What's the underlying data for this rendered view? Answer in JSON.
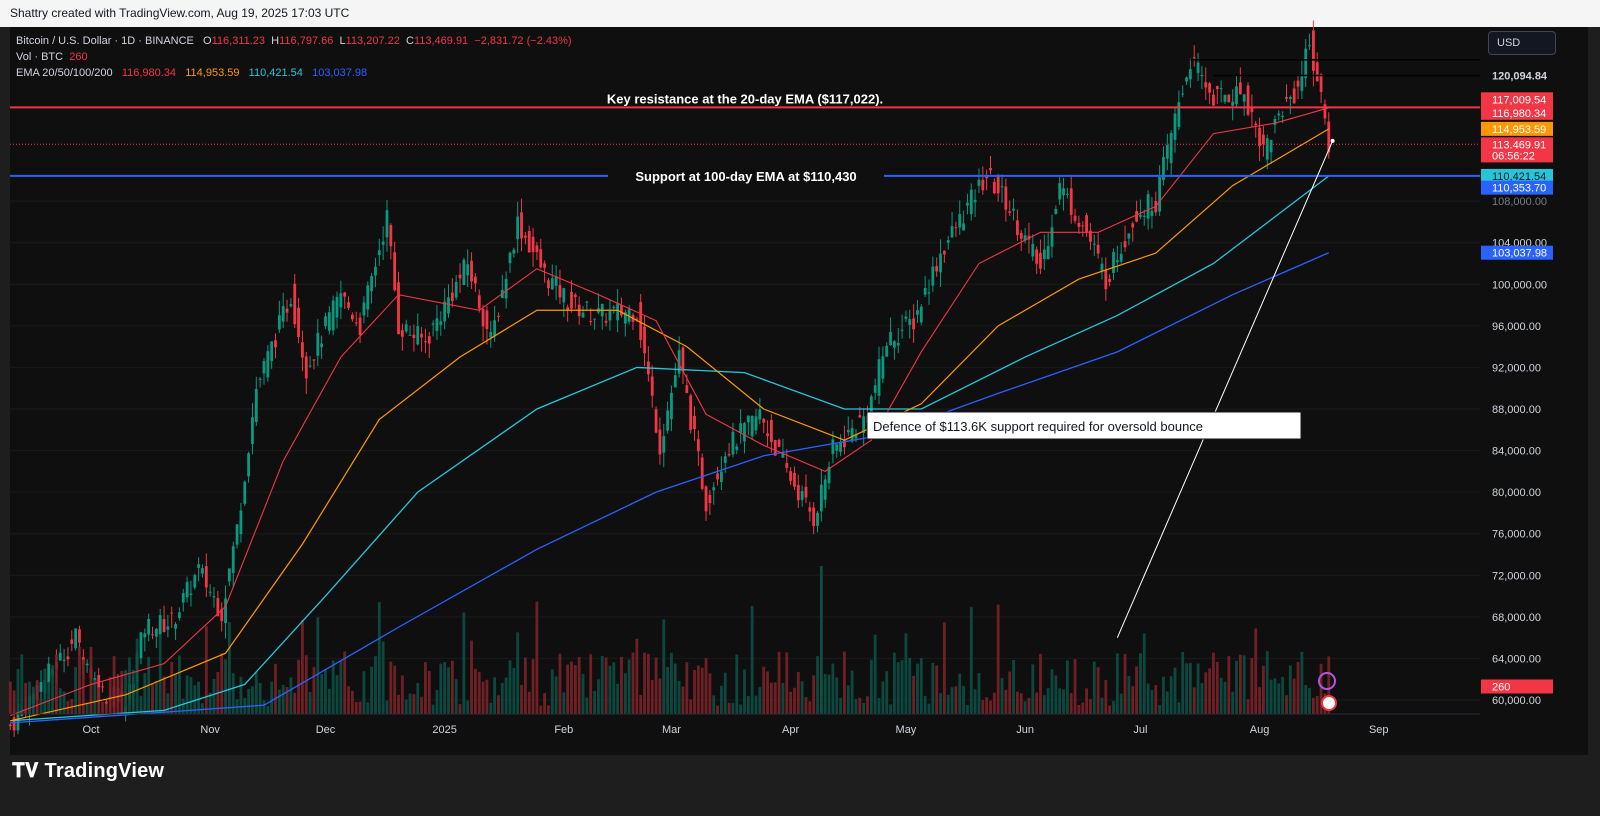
{
  "header": {
    "watermark": "Shattry created with TradingView.com, Aug 19, 2025 17:03 UTC"
  },
  "legend": {
    "symbol": "Bitcoin / U.S. Dollar · 1D · BINANCE",
    "o_label": "O",
    "o_value": "116,311.23",
    "h_label": "H",
    "h_value": "116,797.66",
    "l_label": "L",
    "l_value": "113,207.22",
    "c_label": "C",
    "c_value": "113,469.91",
    "change": "−2,831.72 (−2.43%)",
    "vol_label": "Vol · BTC",
    "vol_value": "260",
    "ema_label": "EMA 20/50/100/200",
    "ema20": "116,980.34",
    "ema50": "114,953.59",
    "ema100": "110,421.54",
    "ema200": "103,037.98"
  },
  "currency_button": "USD",
  "brand": "TradingView",
  "colors": {
    "up": "#089981",
    "down": "#f23645",
    "ema20": "#f23645",
    "ema50": "#ff9800",
    "ema100": "#26c6da",
    "ema200": "#2962ff",
    "background": "#0f0f0f"
  },
  "chart_data": {
    "type": "candlestick",
    "title": "Bitcoin / U.S. Dollar · 1D · BINANCE",
    "ylim": [
      58000,
      124000
    ],
    "y_ticks": [
      "60,000.00",
      "64,000.00",
      "68,000.00",
      "72,000.00",
      "76,000.00",
      "80,000.00",
      "84,000.00",
      "88,000.00",
      "92,000.00",
      "96,000.00",
      "100,000.00",
      "104,000.00",
      "108,000.00",
      "120,094.84"
    ],
    "y_tick_values": [
      60000,
      64000,
      68000,
      72000,
      76000,
      80000,
      84000,
      88000,
      92000,
      96000,
      100000,
      104000,
      108000,
      120094.84
    ],
    "x_ticks": [
      {
        "label": "Oct",
        "date": "2024-10-01"
      },
      {
        "label": "Nov",
        "date": "2024-11-01"
      },
      {
        "label": "Dec",
        "date": "2024-12-01"
      },
      {
        "label": "2025",
        "date": "2025-01-01"
      },
      {
        "label": "Feb",
        "date": "2025-02-01"
      },
      {
        "label": "Mar",
        "date": "2025-03-01"
      },
      {
        "label": "Apr",
        "date": "2025-04-01"
      },
      {
        "label": "May",
        "date": "2025-05-01"
      },
      {
        "label": "Jun",
        "date": "2025-06-01"
      },
      {
        "label": "Jul",
        "date": "2025-07-01"
      },
      {
        "label": "Aug",
        "date": "2025-08-01"
      },
      {
        "label": "Sep",
        "date": "2025-09-01"
      }
    ],
    "price_path": [
      [
        "2024-09-10",
        57500
      ],
      [
        "2024-09-20",
        62500
      ],
      [
        "2024-09-27",
        66000
      ],
      [
        "2024-10-03",
        61000
      ],
      [
        "2024-10-10",
        59500
      ],
      [
        "2024-10-15",
        67000
      ],
      [
        "2024-10-22",
        67500
      ],
      [
        "2024-10-29",
        72500
      ],
      [
        "2024-11-04",
        68500
      ],
      [
        "2024-11-08",
        76500
      ],
      [
        "2024-11-13",
        90000
      ],
      [
        "2024-11-22",
        99000
      ],
      [
        "2024-11-26",
        92000
      ],
      [
        "2024-12-05",
        99000
      ],
      [
        "2024-12-10",
        96000
      ],
      [
        "2024-12-17",
        106500
      ],
      [
        "2024-12-20",
        96000
      ],
      [
        "2024-12-27",
        94500
      ],
      [
        "2025-01-07",
        102000
      ],
      [
        "2025-01-13",
        94500
      ],
      [
        "2025-01-20",
        106000
      ],
      [
        "2025-01-27",
        101000
      ],
      [
        "2025-02-03",
        98000
      ],
      [
        "2025-02-10",
        97000
      ],
      [
        "2025-02-20",
        97500
      ],
      [
        "2025-02-26",
        84500
      ],
      [
        "2025-03-03",
        93000
      ],
      [
        "2025-03-10",
        79000
      ],
      [
        "2025-03-15",
        84000
      ],
      [
        "2025-03-24",
        87500
      ],
      [
        "2025-03-31",
        82000
      ],
      [
        "2025-04-07",
        77500
      ],
      [
        "2025-04-12",
        84000
      ],
      [
        "2025-04-21",
        87500
      ],
      [
        "2025-04-26",
        94500
      ],
      [
        "2025-05-03",
        96500
      ],
      [
        "2025-05-10",
        103000
      ],
      [
        "2025-05-22",
        110500
      ],
      [
        "2025-05-27",
        108000
      ],
      [
        "2025-06-05",
        101500
      ],
      [
        "2025-06-10",
        109500
      ],
      [
        "2025-06-17",
        105000
      ],
      [
        "2025-06-22",
        100500
      ],
      [
        "2025-06-30",
        107000
      ],
      [
        "2025-07-05",
        108000
      ],
      [
        "2025-07-11",
        117500
      ],
      [
        "2025-07-14",
        121500
      ],
      [
        "2025-07-20",
        118000
      ],
      [
        "2025-07-28",
        118500
      ],
      [
        "2025-08-02",
        113000
      ],
      [
        "2025-08-07",
        117000
      ],
      [
        "2025-08-11",
        119000
      ],
      [
        "2025-08-14",
        123500
      ],
      [
        "2025-08-17",
        117500
      ],
      [
        "2025-08-19",
        113469.91
      ]
    ],
    "ema20": [
      [
        "2024-09-10",
        58500
      ],
      [
        "2024-10-01",
        61500
      ],
      [
        "2024-10-20",
        63500
      ],
      [
        "2024-11-05",
        69000
      ],
      [
        "2024-11-20",
        83000
      ],
      [
        "2024-12-05",
        93000
      ],
      [
        "2024-12-20",
        99000
      ],
      [
        "2025-01-10",
        97500
      ],
      [
        "2025-01-25",
        101500
      ],
      [
        "2025-02-10",
        99000
      ],
      [
        "2025-02-25",
        96500
      ],
      [
        "2025-03-10",
        87500
      ],
      [
        "2025-03-25",
        84500
      ],
      [
        "2025-04-10",
        82000
      ],
      [
        "2025-04-22",
        85000
      ],
      [
        "2025-05-05",
        93500
      ],
      [
        "2025-05-20",
        102000
      ],
      [
        "2025-06-05",
        105000
      ],
      [
        "2025-06-20",
        105000
      ],
      [
        "2025-07-05",
        107500
      ],
      [
        "2025-07-20",
        114500
      ],
      [
        "2025-08-05",
        115500
      ],
      [
        "2025-08-19",
        116980.34
      ]
    ],
    "ema50": [
      [
        "2024-09-10",
        58000
      ],
      [
        "2024-10-10",
        60500
      ],
      [
        "2024-11-05",
        64500
      ],
      [
        "2024-11-25",
        75000
      ],
      [
        "2024-12-15",
        87000
      ],
      [
        "2025-01-05",
        93000
      ],
      [
        "2025-01-25",
        97500
      ],
      [
        "2025-02-15",
        97500
      ],
      [
        "2025-03-05",
        94000
      ],
      [
        "2025-03-25",
        88000
      ],
      [
        "2025-04-15",
        85000
      ],
      [
        "2025-05-05",
        88500
      ],
      [
        "2025-05-25",
        96000
      ],
      [
        "2025-06-15",
        100500
      ],
      [
        "2025-07-05",
        103000
      ],
      [
        "2025-07-25",
        109500
      ],
      [
        "2025-08-19",
        114953.59
      ]
    ],
    "ema100": [
      [
        "2024-09-10",
        58000
      ],
      [
        "2024-10-20",
        59000
      ],
      [
        "2024-11-10",
        61500
      ],
      [
        "2024-12-01",
        70000
      ],
      [
        "2024-12-25",
        80000
      ],
      [
        "2025-01-25",
        88000
      ],
      [
        "2025-02-20",
        92000
      ],
      [
        "2025-03-20",
        91500
      ],
      [
        "2025-04-15",
        88000
      ],
      [
        "2025-05-05",
        88000
      ],
      [
        "2025-06-01",
        93000
      ],
      [
        "2025-06-25",
        97000
      ],
      [
        "2025-07-20",
        102000
      ],
      [
        "2025-08-19",
        110421.54
      ]
    ],
    "ema200": [
      [
        "2024-09-10",
        57800
      ],
      [
        "2024-11-15",
        59500
      ],
      [
        "2024-12-20",
        67000
      ],
      [
        "2025-01-25",
        74500
      ],
      [
        "2025-02-25",
        80000
      ],
      [
        "2025-03-25",
        83500
      ],
      [
        "2025-04-25",
        85500
      ],
      [
        "2025-05-25",
        89500
      ],
      [
        "2025-06-25",
        93500
      ],
      [
        "2025-07-25",
        99000
      ],
      [
        "2025-08-19",
        103037.98
      ]
    ],
    "horizontal_lines": [
      {
        "label": "Key resistance at the 20-day EMA ($117,022).",
        "price": 117022,
        "color": "#f23645"
      },
      {
        "label": "Support at 100-day EMA at $110,430",
        "price": 110430,
        "color": "#2962ff"
      }
    ],
    "black_lines": [
      {
        "from": "2025-07-14",
        "to": "2025-09-05",
        "price": 121600
      },
      {
        "from": "2025-07-20",
        "to": "2025-09-05",
        "price": 120094.84
      }
    ],
    "trendline": {
      "from": [
        "2025-06-25",
        66000
      ],
      "to": [
        "2025-08-20",
        113800
      ]
    },
    "annotation": {
      "text": "Defence of $113.6K support required for oversold bounce"
    },
    "price_labels": [
      {
        "text": "120,094.84",
        "price": 120094.84,
        "bg": "#000000",
        "fg": "#ffffff"
      },
      {
        "text": "117,009.54",
        "price": 117800,
        "bg": "#f23645",
        "fg": "#ffffff"
      },
      {
        "text": "116,980.34",
        "price": 116500,
        "bg": "#f23645",
        "fg": "#ffffff"
      },
      {
        "text": "114,953.59",
        "price": 114953.59,
        "bg": "#ff9800",
        "fg": "#ffffff"
      },
      {
        "text": "113,469.91",
        "price": 113469.91,
        "bg": "#f23645",
        "fg": "#ffffff"
      },
      {
        "text": "06:56:22",
        "price": 112400,
        "bg": "#f23645",
        "fg": "#ffffff"
      },
      {
        "text": "110,421.54",
        "price": 110421.54,
        "bg": "#26c6da",
        "fg": "#131722"
      },
      {
        "text": "110,353.70",
        "price": 109300,
        "bg": "#2962ff",
        "fg": "#ffffff"
      },
      {
        "text": "103,037.98",
        "price": 103037.98,
        "bg": "#2962ff",
        "fg": "#ffffff"
      },
      {
        "text": "260",
        "price": 61300,
        "bg": "#f23645",
        "fg": "#ffffff"
      }
    ]
  }
}
